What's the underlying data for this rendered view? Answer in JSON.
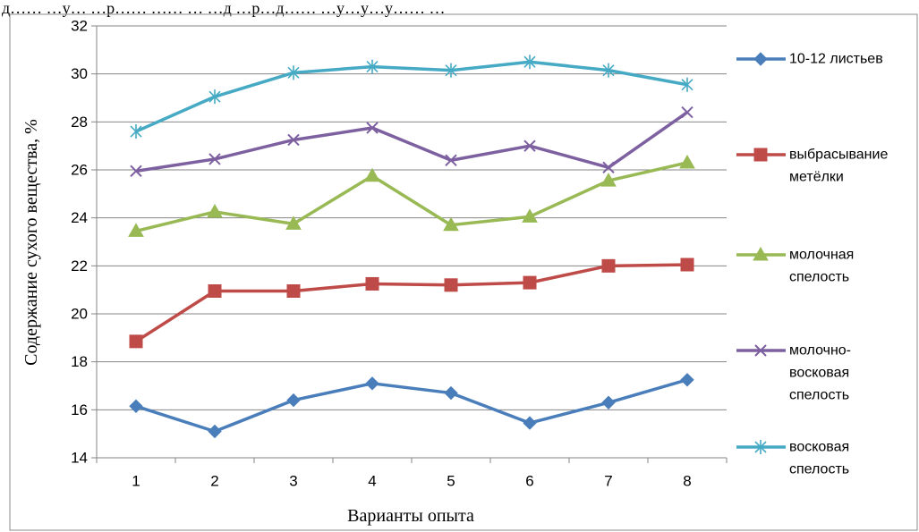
{
  "caption": "д…… …у… …р…… …… … …д …р…д…… …у…у…у…… …",
  "chart_data": {
    "type": "line",
    "title": "",
    "xlabel": "Варианты опыта",
    "ylabel": "Содержание сухого вещества, %",
    "categories": [
      "1",
      "2",
      "3",
      "4",
      "5",
      "6",
      "7",
      "8"
    ],
    "ylim": [
      14,
      32
    ],
    "yticks": [
      14,
      16,
      18,
      20,
      22,
      24,
      26,
      28,
      30,
      32
    ],
    "grid": true,
    "legend_position": "right",
    "series": [
      {
        "name": "10-12 листьев",
        "legend_lines": [
          "10-12 листьев"
        ],
        "color": "#4a7ebb",
        "marker": "diamond",
        "values": [
          16.15,
          15.1,
          16.4,
          17.1,
          16.7,
          15.45,
          16.3,
          17.25
        ]
      },
      {
        "name": "выбрасывание метёлки",
        "legend_lines": [
          "выбрасывание",
          "метёлки"
        ],
        "color": "#be4b48",
        "marker": "square",
        "values": [
          18.85,
          20.95,
          20.95,
          21.25,
          21.2,
          21.3,
          22.0,
          22.05
        ]
      },
      {
        "name": "молочная спелость",
        "legend_lines": [
          "молочная",
          "спелость"
        ],
        "color": "#98b954",
        "marker": "triangle",
        "values": [
          23.45,
          24.25,
          23.75,
          25.75,
          23.7,
          24.05,
          25.55,
          26.3
        ]
      },
      {
        "name": "молочно-восковая спелость",
        "legend_lines": [
          "молочно-",
          "восковая",
          "спелость"
        ],
        "color": "#7d60a0",
        "marker": "x",
        "values": [
          25.95,
          26.45,
          27.25,
          27.75,
          26.4,
          27.0,
          26.1,
          28.4
        ]
      },
      {
        "name": "восковая спелость",
        "legend_lines": [
          "восковая",
          "спелость"
        ],
        "color": "#46aac5",
        "marker": "star",
        "values": [
          27.6,
          29.05,
          30.05,
          30.3,
          30.15,
          30.5,
          30.15,
          29.55
        ]
      }
    ]
  }
}
